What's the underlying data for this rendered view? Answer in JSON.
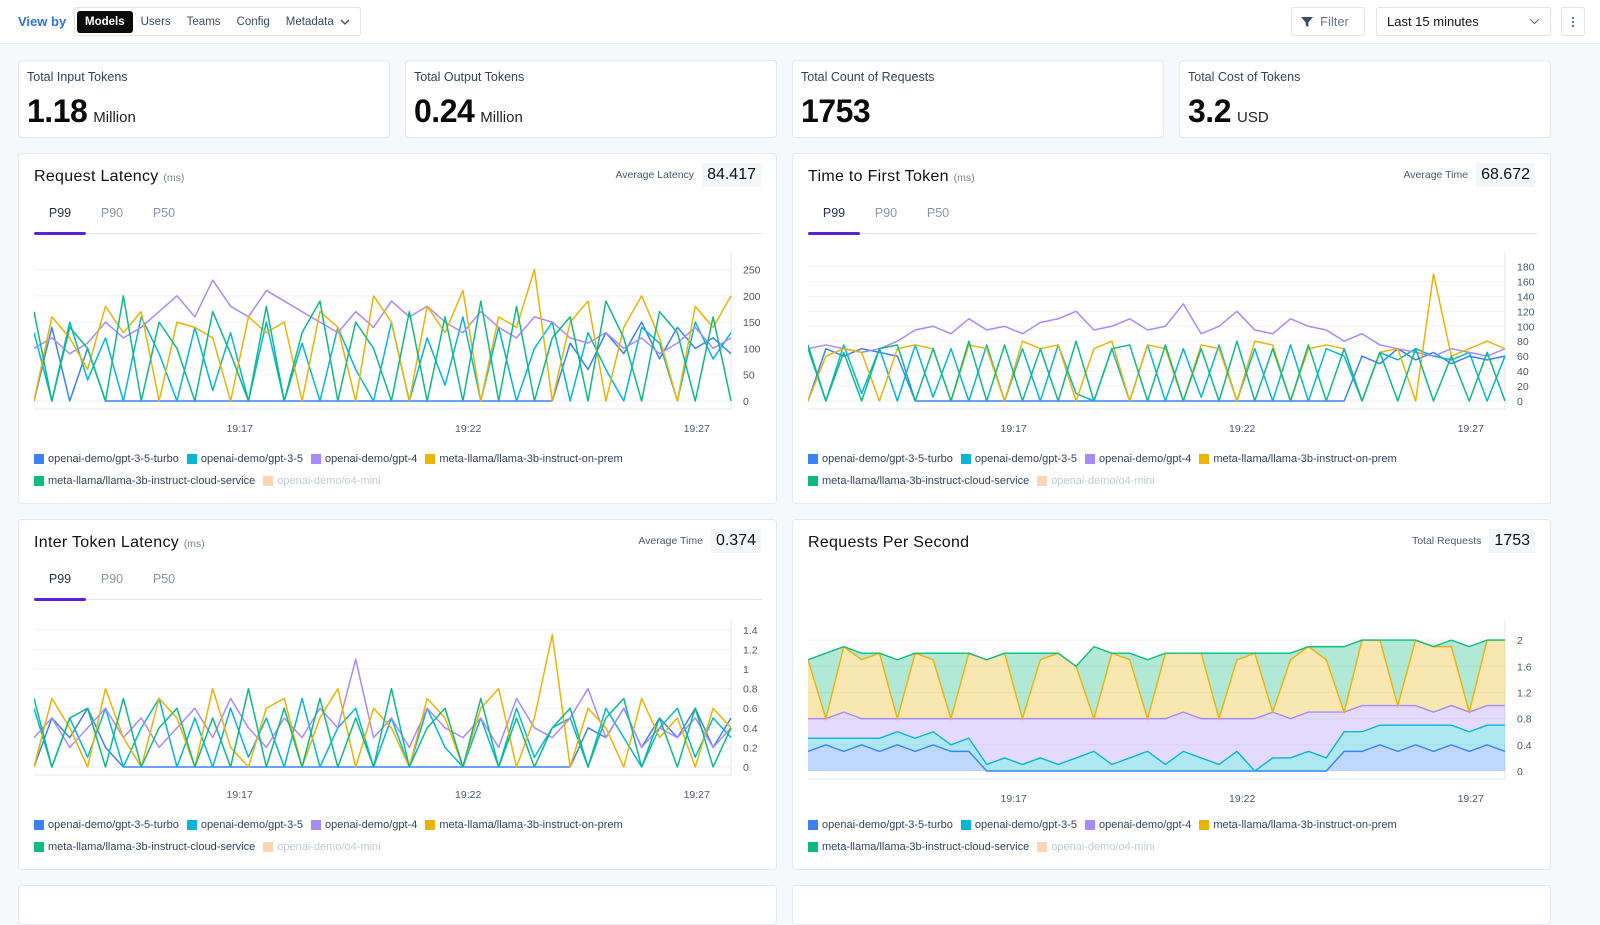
{
  "header": {
    "view_by_label": "View by",
    "view_tabs": [
      {
        "label": "Models",
        "active": true
      },
      {
        "label": "Users",
        "active": false
      },
      {
        "label": "Teams",
        "active": false
      },
      {
        "label": "Config",
        "active": false
      },
      {
        "label": "Metadata",
        "active": false
      }
    ],
    "filter_label": "Filter",
    "time_range": "Last 15 minutes"
  },
  "stats": [
    {
      "label": "Total Input Tokens",
      "value": "1.18",
      "unit": "Million"
    },
    {
      "label": "Total Output Tokens",
      "value": "0.24",
      "unit": "Million"
    },
    {
      "label": "Total Count of Requests",
      "value": "1753",
      "unit": ""
    },
    {
      "label": "Total Cost of Tokens",
      "value": "3.2",
      "unit": "USD"
    }
  ],
  "legend": [
    {
      "name": "openai-demo/gpt-3-5-turbo",
      "color": "#3b82f6",
      "enabled": true
    },
    {
      "name": "openai-demo/gpt-3-5",
      "color": "#06b6d4",
      "enabled": true
    },
    {
      "name": "openai-demo/gpt-4",
      "color": "#a78bfa",
      "enabled": true
    },
    {
      "name": "meta-llama/llama-3b-instruct-on-prem",
      "color": "#eab308",
      "enabled": true
    },
    {
      "name": "meta-llama/llama-3b-instruct-cloud-service",
      "color": "#10b981",
      "enabled": true
    },
    {
      "name": "openai-demo/o4-mini",
      "color": "#fdd5b4",
      "enabled": false
    }
  ],
  "charts": [
    {
      "title": "Request Latency",
      "unit": "(ms)",
      "summary_label": "Average Latency",
      "summary_value": "84.417",
      "tabs": [
        "P99",
        "P90",
        "P50"
      ],
      "active_tab": "P99"
    },
    {
      "title": "Time to First Token",
      "unit": "(ms)",
      "summary_label": "Average Time",
      "summary_value": "68.672",
      "tabs": [
        "P99",
        "P90",
        "P50"
      ],
      "active_tab": "P99"
    },
    {
      "title": "Inter Token Latency",
      "unit": "(ms)",
      "summary_label": "Average Time",
      "summary_value": "0.374",
      "tabs": [
        "P99",
        "P90",
        "P50"
      ],
      "active_tab": "P99"
    },
    {
      "title": "Requests Per Second",
      "unit": "",
      "summary_label": "Total Requests",
      "summary_value": "1753",
      "tabs": [],
      "active_tab": ""
    }
  ],
  "chart_data": [
    {
      "type": "line",
      "x_range": [
        "19:12:30",
        "19:27:45"
      ],
      "x_ticks": [
        "19:17",
        "19:22",
        "19:27"
      ],
      "ylim": [
        0,
        270
      ],
      "y_ticks": [
        0,
        50,
        100,
        150,
        200,
        250
      ],
      "grid": true,
      "series": [
        {
          "name": "openai-demo/gpt-3-5-turbo",
          "values": [
            0,
            140,
            0,
            100,
            0,
            0,
            0,
            0,
            0,
            0,
            0,
            0,
            0,
            0,
            0,
            0,
            0,
            0,
            0,
            0,
            0,
            0,
            0,
            0,
            0,
            0,
            0,
            0,
            0,
            0,
            110,
            60,
            130,
            90,
            150,
            80,
            140,
            100,
            120,
            90
          ]
        },
        {
          "name": "openai-demo/gpt-3-5",
          "values": [
            130,
            0,
            150,
            40,
            120,
            0,
            160,
            90,
            0,
            140,
            20,
            130,
            0,
            150,
            0,
            110,
            0,
            140,
            60,
            0,
            150,
            0,
            120,
            30,
            160,
            0,
            140,
            0,
            100,
            150,
            0,
            130,
            60,
            0,
            140,
            110,
            0,
            150,
            80,
            130
          ]
        },
        {
          "name": "openai-demo/gpt-4",
          "values": [
            100,
            120,
            90,
            110,
            150,
            120,
            140,
            170,
            200,
            160,
            230,
            180,
            160,
            210,
            190,
            170,
            150,
            130,
            170,
            140,
            190,
            160,
            180,
            150,
            130,
            170,
            140,
            120,
            160,
            150,
            120,
            110,
            130,
            100,
            120,
            90,
            110,
            140,
            100,
            120
          ]
        },
        {
          "name": "meta-llama/llama-3b-instruct-on-prem",
          "values": [
            0,
            160,
            120,
            60,
            180,
            130,
            170,
            0,
            150,
            140,
            120,
            0,
            160,
            130,
            150,
            0,
            170,
            140,
            0,
            200,
            150,
            0,
            180,
            130,
            210,
            0,
            160,
            140,
            250,
            0,
            150,
            190,
            0,
            140,
            200,
            120,
            0,
            180,
            140,
            200
          ]
        },
        {
          "name": "meta-llama/llama-3b-instruct-cloud-service",
          "values": [
            170,
            0,
            140,
            100,
            0,
            200,
            0,
            150,
            100,
            0,
            170,
            90,
            0,
            180,
            0,
            130,
            190,
            0,
            150,
            100,
            0,
            170,
            0,
            160,
            0,
            190,
            0,
            180,
            0,
            120,
            160,
            0,
            190,
            120,
            0,
            170,
            130,
            0,
            160,
            0
          ]
        }
      ]
    },
    {
      "type": "line",
      "x_range": [
        "19:12:30",
        "19:27:45"
      ],
      "x_ticks": [
        "19:17",
        "19:22",
        "19:27"
      ],
      "ylim": [
        0,
        190
      ],
      "y_ticks": [
        0,
        20,
        40,
        60,
        80,
        100,
        120,
        140,
        160,
        180
      ],
      "grid": true,
      "series": [
        {
          "name": "openai-demo/gpt-3-5-turbo",
          "values": [
            0,
            70,
            60,
            70,
            65,
            60,
            0,
            0,
            0,
            0,
            0,
            0,
            0,
            0,
            0,
            0,
            0,
            0,
            0,
            0,
            0,
            0,
            0,
            0,
            0,
            0,
            0,
            0,
            0,
            0,
            0,
            60,
            50,
            70,
            55,
            65,
            50,
            60,
            55,
            60
          ]
        },
        {
          "name": "openai-demo/gpt-3-5",
          "values": [
            70,
            0,
            75,
            10,
            70,
            0,
            75,
            5,
            70,
            0,
            75,
            0,
            70,
            0,
            75,
            10,
            0,
            70,
            0,
            75,
            0,
            70,
            5,
            75,
            0,
            70,
            0,
            75,
            0,
            70,
            60,
            0,
            65,
            55,
            70,
            60,
            55,
            65,
            0,
            60
          ]
        },
        {
          "name": "openai-demo/gpt-4",
          "values": [
            70,
            75,
            70,
            65,
            70,
            80,
            95,
            100,
            90,
            110,
            95,
            100,
            90,
            105,
            110,
            120,
            95,
            100,
            110,
            95,
            100,
            130,
            90,
            100,
            120,
            95,
            90,
            110,
            100,
            95,
            80,
            90,
            75,
            70,
            65,
            60,
            70,
            65,
            60,
            70
          ]
        },
        {
          "name": "meta-llama/llama-3b-instruct-on-prem",
          "values": [
            0,
            60,
            70,
            65,
            0,
            70,
            75,
            70,
            0,
            75,
            70,
            0,
            80,
            70,
            75,
            0,
            70,
            80,
            0,
            75,
            70,
            0,
            75,
            70,
            0,
            80,
            75,
            0,
            70,
            75,
            70,
            0,
            65,
            70,
            0,
            170,
            60,
            70,
            80,
            70
          ]
        },
        {
          "name": "meta-llama/llama-3b-instruct-cloud-service",
          "values": [
            75,
            0,
            65,
            0,
            70,
            75,
            0,
            70,
            0,
            80,
            0,
            75,
            0,
            70,
            0,
            80,
            0,
            70,
            75,
            0,
            75,
            0,
            70,
            0,
            80,
            0,
            70,
            0,
            75,
            0,
            70,
            0,
            65,
            0,
            70,
            0,
            60,
            0,
            65,
            0
          ]
        }
      ]
    },
    {
      "type": "line",
      "x_range": [
        "19:12:30",
        "19:27:45"
      ],
      "x_ticks": [
        "19:17",
        "19:22",
        "19:27"
      ],
      "ylim": [
        0,
        1.45
      ],
      "y_ticks": [
        0,
        0.2,
        0.4,
        0.6,
        0.8,
        1,
        1.2,
        1.4
      ],
      "grid": true,
      "series": [
        {
          "name": "openai-demo/gpt-3-5-turbo",
          "values": [
            0,
            0.5,
            0.3,
            0.6,
            0.2,
            0,
            0,
            0,
            0,
            0,
            0,
            0,
            0,
            0,
            0,
            0,
            0,
            0,
            0,
            0,
            0,
            0,
            0,
            0,
            0,
            0,
            0,
            0,
            0,
            0,
            0,
            0.4,
            0.3,
            0.6,
            0.2,
            0.5,
            0.3,
            0.6,
            0.2,
            0.5
          ]
        },
        {
          "name": "openai-demo/gpt-3-5",
          "values": [
            0.6,
            0,
            0.5,
            0.1,
            0.6,
            0,
            0.4,
            0.7,
            0,
            0.5,
            0,
            0.6,
            0.1,
            0.5,
            0,
            0.7,
            0,
            0.4,
            0.6,
            0,
            0.5,
            0,
            0.6,
            0.2,
            0,
            0.5,
            0,
            0.6,
            0.1,
            0.4,
            0.5,
            0,
            0.6,
            0.3,
            0,
            0.4,
            0.6,
            0.1,
            0.5,
            0.3
          ]
        },
        {
          "name": "openai-demo/gpt-4",
          "values": [
            0.3,
            0.5,
            0.2,
            0.4,
            0.6,
            0.3,
            0.5,
            0.2,
            0.4,
            0.6,
            0.3,
            0.7,
            0.4,
            0.2,
            0.5,
            0.3,
            0.6,
            0.4,
            1.1,
            0.3,
            0.5,
            0.2,
            0.6,
            0.4,
            0.3,
            0.5,
            0.2,
            0.7,
            0.4,
            0.3,
            0.5,
            0.8,
            0.3,
            0.6,
            0.2,
            0.4,
            0.3,
            0.5,
            0.2,
            0.4
          ]
        },
        {
          "name": "meta-llama/llama-3b-instruct-on-prem",
          "values": [
            0,
            0.7,
            0.4,
            0,
            0.8,
            0.3,
            0,
            0.7,
            0.5,
            0,
            0.8,
            0.2,
            0,
            0.6,
            0.7,
            0,
            0.5,
            0.8,
            0,
            0.6,
            0.4,
            0,
            0.7,
            0.5,
            0,
            0.6,
            0.8,
            0,
            0.5,
            1.35,
            0,
            0.6,
            0.4,
            0,
            0.7,
            0.3,
            0.5,
            0,
            0.6,
            0.4
          ]
        },
        {
          "name": "meta-llama/llama-3b-instruct-cloud-service",
          "values": [
            0.7,
            0,
            0.5,
            0.6,
            0,
            0.7,
            0,
            0.4,
            0.6,
            0,
            0.5,
            0,
            0.8,
            0,
            0.6,
            0,
            0.7,
            0,
            0.5,
            0,
            0.8,
            0,
            0.4,
            0.6,
            0,
            0.7,
            0,
            0.5,
            0,
            0.4,
            0.6,
            0,
            0.5,
            0.7,
            0,
            0.5,
            0,
            0.6,
            0,
            0.4
          ]
        }
      ]
    },
    {
      "type": "area",
      "stacked": true,
      "x_range": [
        "19:12:30",
        "19:27:45"
      ],
      "x_ticks": [
        "19:17",
        "19:22",
        "19:27"
      ],
      "ylim": [
        0,
        2.2
      ],
      "y_ticks": [
        0,
        0.4,
        0.8,
        1.2,
        1.6,
        2
      ],
      "grid": true,
      "series": [
        {
          "name": "openai-demo/gpt-3-5-turbo",
          "values": [
            0.3,
            0.4,
            0.3,
            0.4,
            0.3,
            0.4,
            0.3,
            0.4,
            0.3,
            0.3,
            0,
            0,
            0,
            0,
            0,
            0,
            0,
            0,
            0,
            0,
            0,
            0,
            0,
            0,
            0,
            0,
            0,
            0,
            0,
            0,
            0.3,
            0.3,
            0.4,
            0.3,
            0.4,
            0.3,
            0.4,
            0.3,
            0.4,
            0.3
          ]
        },
        {
          "name": "openai-demo/gpt-3-5",
          "values": [
            0.2,
            0.1,
            0.2,
            0.1,
            0.2,
            0.2,
            0.2,
            0.2,
            0.1,
            0.2,
            0.1,
            0.2,
            0.1,
            0.2,
            0.1,
            0.2,
            0.3,
            0.1,
            0.2,
            0.3,
            0.1,
            0.3,
            0.2,
            0.1,
            0.3,
            0,
            0.2,
            0.2,
            0.3,
            0.2,
            0.3,
            0.3,
            0.3,
            0.4,
            0.3,
            0.4,
            0.3,
            0.3,
            0.3,
            0.4
          ]
        },
        {
          "name": "openai-demo/gpt-4",
          "values": [
            0.3,
            0.3,
            0.4,
            0.3,
            0.3,
            0.2,
            0.3,
            0.2,
            0.4,
            0.3,
            0.7,
            0.6,
            0.7,
            0.6,
            0.7,
            0.6,
            0.5,
            0.7,
            0.6,
            0.5,
            0.7,
            0.6,
            0.6,
            0.7,
            0.5,
            0.8,
            0.7,
            0.6,
            0.6,
            0.7,
            0.3,
            0.4,
            0.3,
            0.3,
            0.3,
            0.2,
            0.3,
            0.3,
            0.3,
            0.3
          ]
        },
        {
          "name": "meta-llama/llama-3b-instruct-on-prem",
          "values": [
            0.9,
            0,
            1.0,
            0.9,
            1.0,
            0,
            1.0,
            0.9,
            0,
            1.0,
            0.9,
            1.0,
            0,
            0.9,
            1.0,
            0.8,
            0,
            1.0,
            0.9,
            0,
            1.0,
            0.9,
            1.0,
            0,
            0.9,
            1.0,
            0,
            0.9,
            1.0,
            0.8,
            0,
            1.0,
            1.0,
            0,
            1.0,
            1.0,
            0.9,
            0,
            1.0,
            1.0
          ]
        },
        {
          "name": "meta-llama/llama-3b-instruct-cloud-service",
          "values": [
            0,
            1.0,
            0,
            0.1,
            0,
            0.9,
            0,
            0.1,
            1.0,
            0,
            0,
            0,
            1.0,
            0.1,
            0,
            0,
            1.1,
            0,
            0.1,
            0.9,
            0,
            0,
            0,
            1.0,
            0.1,
            0,
            0.9,
            0.1,
            0,
            0.2,
            1.0,
            0,
            0,
            1.0,
            0,
            0,
            0.1,
            1.0,
            0,
            0
          ]
        }
      ]
    }
  ]
}
